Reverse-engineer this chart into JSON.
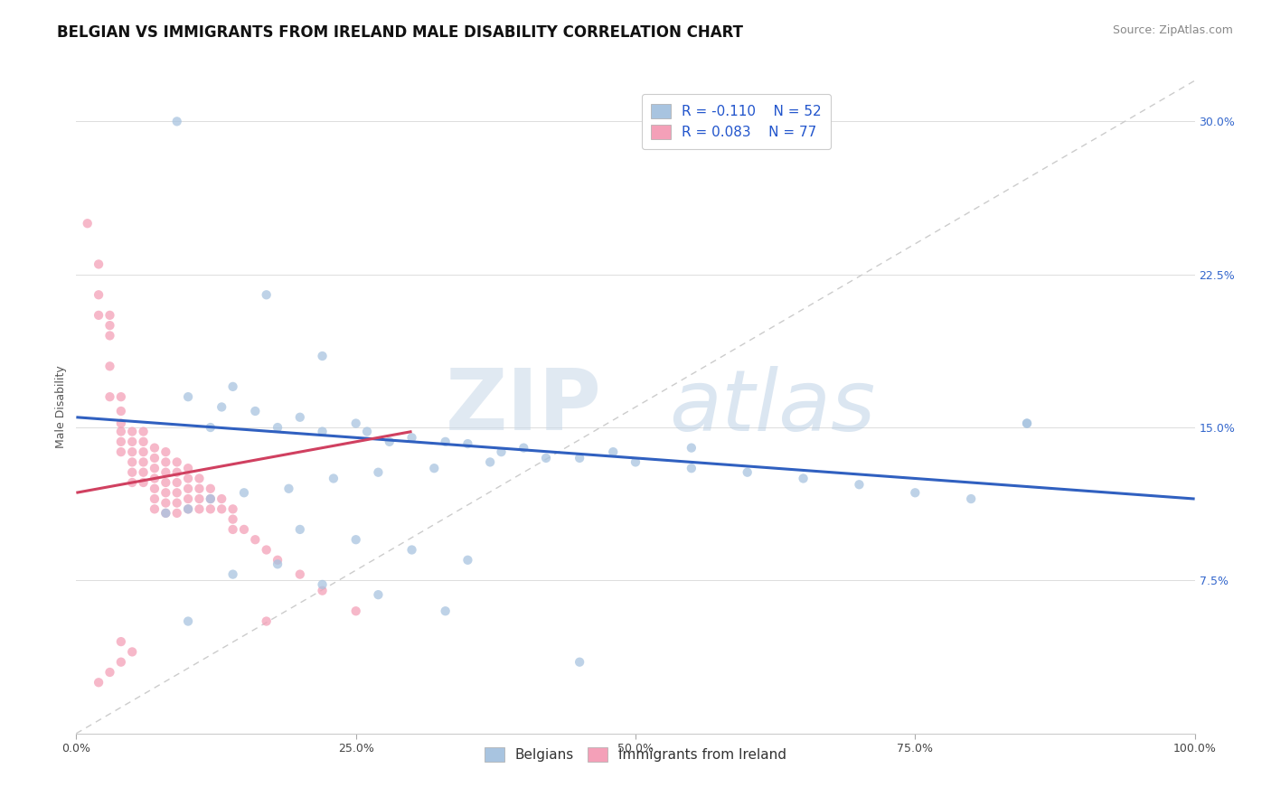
{
  "title": "BELGIAN VS IMMIGRANTS FROM IRELAND MALE DISABILITY CORRELATION CHART",
  "source": "Source: ZipAtlas.com",
  "ylabel": "Male Disability",
  "r_belgian": -0.11,
  "n_belgian": 52,
  "r_ireland": 0.083,
  "n_ireland": 77,
  "belgian_color": "#a8c4e0",
  "ireland_color": "#f4a0b8",
  "belgian_line_color": "#3060c0",
  "ireland_line_color": "#d04060",
  "diagonal_color": "#cccccc",
  "background_color": "#ffffff",
  "xlim": [
    0.0,
    1.0
  ],
  "ylim": [
    0.0,
    0.32
  ],
  "xticks": [
    0.0,
    0.25,
    0.5,
    0.75,
    1.0
  ],
  "xticklabels": [
    "0.0%",
    "25.0%",
    "50.0%",
    "75.0%",
    "100.0%"
  ],
  "yticks_right": [
    0.075,
    0.15,
    0.225,
    0.3
  ],
  "yticklabels_right": [
    "7.5%",
    "15.0%",
    "22.5%",
    "30.0%"
  ],
  "belgian_line_x0": 0.0,
  "belgian_line_y0": 0.155,
  "belgian_line_x1": 1.0,
  "belgian_line_y1": 0.115,
  "ireland_line_x0": 0.0,
  "ireland_line_y0": 0.118,
  "ireland_line_x1": 0.3,
  "ireland_line_y1": 0.148,
  "belgian_x": [
    0.09,
    0.17,
    0.22,
    0.14,
    0.1,
    0.13,
    0.16,
    0.2,
    0.25,
    0.18,
    0.12,
    0.22,
    0.26,
    0.3,
    0.28,
    0.33,
    0.35,
    0.4,
    0.38,
    0.45,
    0.5,
    0.55,
    0.6,
    0.65,
    0.7,
    0.75,
    0.8,
    0.85,
    0.55,
    0.48,
    0.42,
    0.37,
    0.32,
    0.27,
    0.23,
    0.19,
    0.15,
    0.12,
    0.1,
    0.08,
    0.2,
    0.25,
    0.3,
    0.35,
    0.18,
    0.14,
    0.22,
    0.27,
    0.33,
    0.85,
    0.45,
    0.1
  ],
  "belgian_y": [
    0.3,
    0.215,
    0.185,
    0.17,
    0.165,
    0.16,
    0.158,
    0.155,
    0.152,
    0.15,
    0.15,
    0.148,
    0.148,
    0.145,
    0.143,
    0.143,
    0.142,
    0.14,
    0.138,
    0.135,
    0.133,
    0.13,
    0.128,
    0.125,
    0.122,
    0.118,
    0.115,
    0.152,
    0.14,
    0.138,
    0.135,
    0.133,
    0.13,
    0.128,
    0.125,
    0.12,
    0.118,
    0.115,
    0.11,
    0.108,
    0.1,
    0.095,
    0.09,
    0.085,
    0.083,
    0.078,
    0.073,
    0.068,
    0.06,
    0.152,
    0.035,
    0.055
  ],
  "ireland_x": [
    0.01,
    0.02,
    0.02,
    0.02,
    0.03,
    0.03,
    0.03,
    0.03,
    0.03,
    0.04,
    0.04,
    0.04,
    0.04,
    0.04,
    0.04,
    0.05,
    0.05,
    0.05,
    0.05,
    0.05,
    0.05,
    0.06,
    0.06,
    0.06,
    0.06,
    0.06,
    0.06,
    0.07,
    0.07,
    0.07,
    0.07,
    0.07,
    0.07,
    0.07,
    0.08,
    0.08,
    0.08,
    0.08,
    0.08,
    0.08,
    0.08,
    0.09,
    0.09,
    0.09,
    0.09,
    0.09,
    0.09,
    0.1,
    0.1,
    0.1,
    0.1,
    0.1,
    0.11,
    0.11,
    0.11,
    0.11,
    0.12,
    0.12,
    0.12,
    0.13,
    0.13,
    0.14,
    0.14,
    0.14,
    0.15,
    0.16,
    0.17,
    0.18,
    0.2,
    0.22,
    0.25,
    0.02,
    0.03,
    0.04,
    0.05,
    0.17,
    0.04
  ],
  "ireland_y": [
    0.25,
    0.23,
    0.215,
    0.205,
    0.205,
    0.2,
    0.195,
    0.18,
    0.165,
    0.165,
    0.158,
    0.152,
    0.148,
    0.143,
    0.138,
    0.148,
    0.143,
    0.138,
    0.133,
    0.128,
    0.123,
    0.148,
    0.143,
    0.138,
    0.133,
    0.128,
    0.123,
    0.14,
    0.135,
    0.13,
    0.125,
    0.12,
    0.115,
    0.11,
    0.138,
    0.133,
    0.128,
    0.123,
    0.118,
    0.113,
    0.108,
    0.133,
    0.128,
    0.123,
    0.118,
    0.113,
    0.108,
    0.13,
    0.125,
    0.12,
    0.115,
    0.11,
    0.125,
    0.12,
    0.115,
    0.11,
    0.12,
    0.115,
    0.11,
    0.115,
    0.11,
    0.11,
    0.105,
    0.1,
    0.1,
    0.095,
    0.09,
    0.085,
    0.078,
    0.07,
    0.06,
    0.025,
    0.03,
    0.035,
    0.04,
    0.055,
    0.045
  ],
  "watermark_zip": "ZIP",
  "watermark_atlas": "atlas",
  "title_fontsize": 12,
  "axis_fontsize": 9,
  "tick_fontsize": 9,
  "legend_fontsize": 11,
  "source_fontsize": 9
}
